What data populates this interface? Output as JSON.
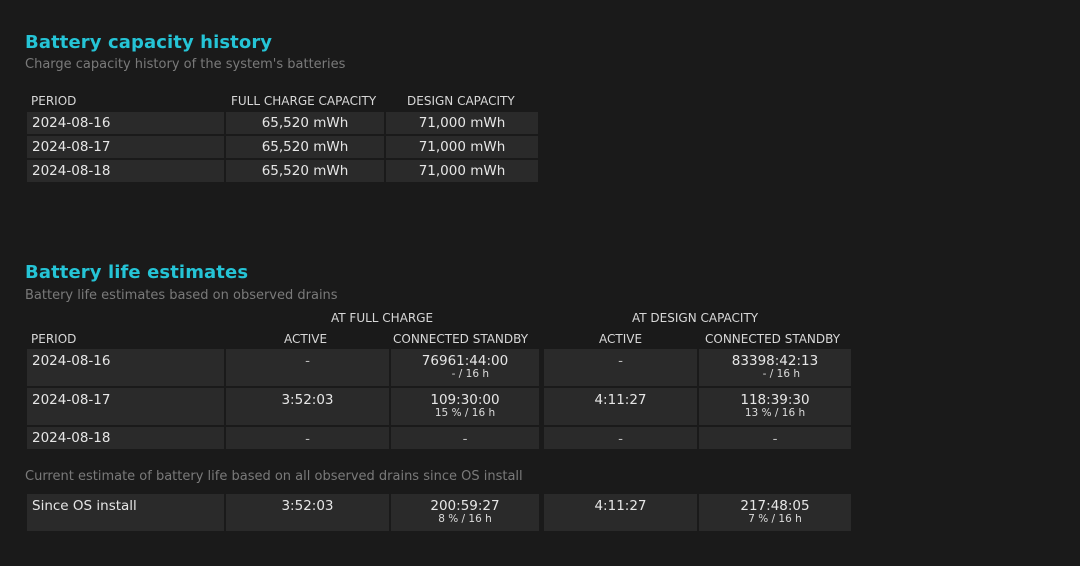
{
  "capacity": {
    "title": "Battery capacity history",
    "subtitle": "Charge capacity history of the system's batteries",
    "headers": {
      "period": "PERIOD",
      "full": "FULL CHARGE CAPACITY",
      "design": "DESIGN CAPACITY"
    },
    "rows": [
      {
        "period": "2024-08-16",
        "full": "65,520 mWh",
        "design": "71,000 mWh"
      },
      {
        "period": "2024-08-17",
        "full": "65,520 mWh",
        "design": "71,000 mWh"
      },
      {
        "period": "2024-08-18",
        "full": "65,520 mWh",
        "design": "71,000 mWh"
      }
    ]
  },
  "life": {
    "title": "Battery life estimates",
    "subtitle": "Battery life estimates based on observed drains",
    "group_full": "AT FULL CHARGE",
    "group_design": "AT DESIGN CAPACITY",
    "headers": {
      "period": "PERIOD",
      "active": "ACTIVE",
      "standby": "CONNECTED STANDBY",
      "active2": "ACTIVE",
      "standby2": "CONNECTED STANDBY"
    },
    "rows": [
      {
        "period": "2024-08-16",
        "active": "-",
        "standby": "76961:44:00",
        "standby_sub": "- / 16 h",
        "active2": "-",
        "standby2": "83398:42:13",
        "standby2_sub": "- / 16 h"
      },
      {
        "period": "2024-08-17",
        "active": "3:52:03",
        "standby": "109:30:00",
        "standby_sub": "15 % / 16 h",
        "active2": "4:11:27",
        "standby2": "118:39:30",
        "standby2_sub": "13 % / 16 h"
      },
      {
        "period": "2024-08-18",
        "active": "-",
        "standby": "-",
        "active2": "-",
        "standby2": "-"
      }
    ],
    "since_label": "Current estimate of battery life based on all observed drains since OS install",
    "since": {
      "period": "Since OS install",
      "active": "3:52:03",
      "standby": "200:59:27",
      "standby_sub": "8 % / 16 h",
      "active2": "4:11:27",
      "standby2": "217:48:05",
      "standby2_sub": "7 % / 16 h"
    }
  }
}
